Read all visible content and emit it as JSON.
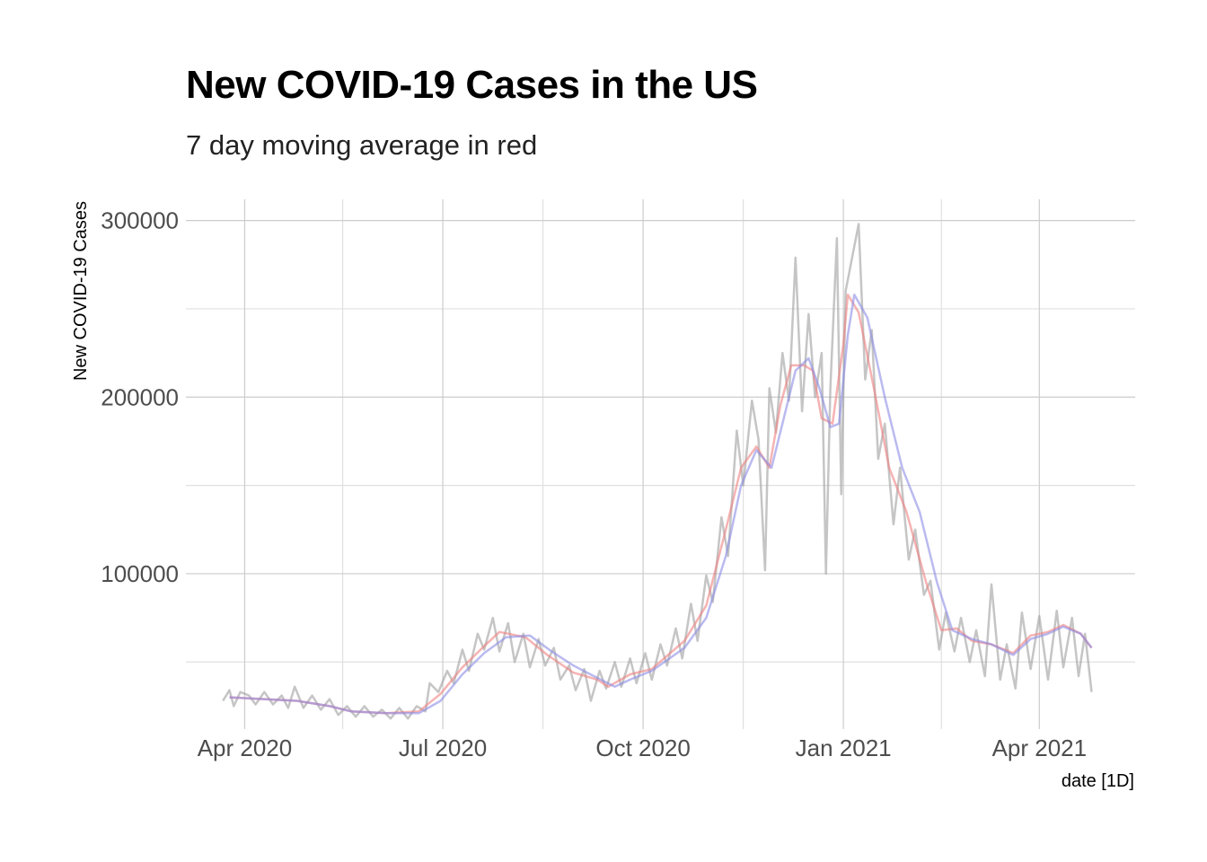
{
  "chart_data": {
    "type": "line",
    "title": "New COVID-19 Cases in the US",
    "subtitle": "7 day moving average in red",
    "xlabel": "date [1D]",
    "ylabel": "New COVID-19 Cases",
    "x_ticks": [
      {
        "date": "2020-04-01",
        "label": "Apr 2020"
      },
      {
        "date": "2020-07-01",
        "label": "Jul 2020"
      },
      {
        "date": "2020-10-01",
        "label": "Oct 2020"
      },
      {
        "date": "2021-01-01",
        "label": "Jan 2021"
      },
      {
        "date": "2021-04-01",
        "label": "Apr 2021"
      }
    ],
    "x_minor_ticks": [
      "2020-05-16",
      "2020-08-16",
      "2020-11-16",
      "2021-02-15"
    ],
    "y_ticks": [
      100000,
      200000,
      300000
    ],
    "y_minor_ticks": [
      50000,
      150000,
      250000
    ],
    "xlim": [
      "2020-03-05",
      "2021-05-15"
    ],
    "ylim": [
      12000,
      312000
    ],
    "grid": true,
    "colors": {
      "daily": "#9e9e9e",
      "ma7": "#f08080",
      "ma14": "#8c8ce6",
      "grid": "#cccccc",
      "grid_minor": "#e0e0e0"
    },
    "daily_anchors": [
      [
        "2020-03-22",
        28000
      ],
      [
        "2020-03-25",
        34000
      ],
      [
        "2020-03-27",
        25000
      ],
      [
        "2020-03-30",
        33000
      ],
      [
        "2020-04-03",
        31000
      ],
      [
        "2020-04-06",
        26000
      ],
      [
        "2020-04-10",
        33000
      ],
      [
        "2020-04-14",
        26000
      ],
      [
        "2020-04-18",
        31000
      ],
      [
        "2020-04-21",
        24000
      ],
      [
        "2020-04-24",
        36000
      ],
      [
        "2020-04-28",
        24000
      ],
      [
        "2020-05-02",
        31000
      ],
      [
        "2020-05-06",
        23000
      ],
      [
        "2020-05-10",
        29000
      ],
      [
        "2020-05-14",
        20000
      ],
      [
        "2020-05-18",
        25000
      ],
      [
        "2020-05-22",
        19000
      ],
      [
        "2020-05-26",
        25000
      ],
      [
        "2020-05-30",
        19000
      ],
      [
        "2020-06-03",
        23000
      ],
      [
        "2020-06-07",
        18000
      ],
      [
        "2020-06-11",
        24000
      ],
      [
        "2020-06-15",
        18000
      ],
      [
        "2020-06-19",
        25000
      ],
      [
        "2020-06-23",
        22000
      ],
      [
        "2020-06-25",
        38000
      ],
      [
        "2020-06-29",
        33000
      ],
      [
        "2020-07-03",
        45000
      ],
      [
        "2020-07-06",
        38000
      ],
      [
        "2020-07-10",
        57000
      ],
      [
        "2020-07-13",
        45000
      ],
      [
        "2020-07-17",
        66000
      ],
      [
        "2020-07-20",
        57000
      ],
      [
        "2020-07-24",
        75000
      ],
      [
        "2020-07-27",
        56000
      ],
      [
        "2020-07-31",
        72000
      ],
      [
        "2020-08-03",
        50000
      ],
      [
        "2020-08-07",
        66000
      ],
      [
        "2020-08-10",
        47000
      ],
      [
        "2020-08-14",
        63000
      ],
      [
        "2020-08-17",
        48000
      ],
      [
        "2020-08-21",
        58000
      ],
      [
        "2020-08-24",
        40000
      ],
      [
        "2020-08-28",
        48000
      ],
      [
        "2020-08-31",
        34000
      ],
      [
        "2020-09-04",
        46000
      ],
      [
        "2020-09-07",
        28000
      ],
      [
        "2020-09-11",
        45000
      ],
      [
        "2020-09-14",
        35000
      ],
      [
        "2020-09-18",
        50000
      ],
      [
        "2020-09-21",
        36000
      ],
      [
        "2020-09-25",
        52000
      ],
      [
        "2020-09-28",
        38000
      ],
      [
        "2020-10-02",
        55000
      ],
      [
        "2020-10-05",
        40000
      ],
      [
        "2020-10-09",
        60000
      ],
      [
        "2020-10-12",
        48000
      ],
      [
        "2020-10-16",
        69000
      ],
      [
        "2020-10-19",
        52000
      ],
      [
        "2020-10-23",
        83000
      ],
      [
        "2020-10-26",
        62000
      ],
      [
        "2020-10-30",
        99000
      ],
      [
        "2020-11-02",
        84000
      ],
      [
        "2020-11-06",
        132000
      ],
      [
        "2020-11-09",
        110000
      ],
      [
        "2020-11-13",
        181000
      ],
      [
        "2020-11-16",
        150000
      ],
      [
        "2020-11-20",
        198000
      ],
      [
        "2020-11-23",
        176000
      ],
      [
        "2020-11-26",
        102000
      ],
      [
        "2020-11-28",
        205000
      ],
      [
        "2020-12-01",
        180000
      ],
      [
        "2020-12-04",
        225000
      ],
      [
        "2020-12-07",
        198000
      ],
      [
        "2020-12-10",
        279000
      ],
      [
        "2020-12-13",
        192000
      ],
      [
        "2020-12-16",
        247000
      ],
      [
        "2020-12-19",
        200000
      ],
      [
        "2020-12-22",
        225000
      ],
      [
        "2020-12-24",
        100000
      ],
      [
        "2020-12-26",
        205000
      ],
      [
        "2020-12-29",
        290000
      ],
      [
        "2020-12-31",
        145000
      ],
      [
        "2021-01-02",
        260000
      ],
      [
        "2021-01-08",
        298000
      ],
      [
        "2021-01-11",
        210000
      ],
      [
        "2021-01-14",
        238000
      ],
      [
        "2021-01-17",
        165000
      ],
      [
        "2021-01-20",
        185000
      ],
      [
        "2021-01-24",
        128000
      ],
      [
        "2021-01-27",
        160000
      ],
      [
        "2021-01-31",
        108000
      ],
      [
        "2021-02-03",
        125000
      ],
      [
        "2021-02-07",
        88000
      ],
      [
        "2021-02-10",
        96000
      ],
      [
        "2021-02-14",
        57000
      ],
      [
        "2021-02-17",
        78000
      ],
      [
        "2021-02-21",
        56000
      ],
      [
        "2021-02-24",
        75000
      ],
      [
        "2021-02-28",
        50000
      ],
      [
        "2021-03-03",
        68000
      ],
      [
        "2021-03-07",
        42000
      ],
      [
        "2021-03-10",
        94000
      ],
      [
        "2021-03-14",
        40000
      ],
      [
        "2021-03-17",
        60000
      ],
      [
        "2021-03-21",
        35000
      ],
      [
        "2021-03-24",
        78000
      ],
      [
        "2021-03-28",
        46000
      ],
      [
        "2021-04-01",
        76000
      ],
      [
        "2021-04-05",
        40000
      ],
      [
        "2021-04-09",
        79000
      ],
      [
        "2021-04-12",
        47000
      ],
      [
        "2021-04-16",
        75000
      ],
      [
        "2021-04-19",
        42000
      ],
      [
        "2021-04-22",
        66000
      ],
      [
        "2021-04-25",
        33000
      ]
    ],
    "series": [
      {
        "values": [
          [
            "2020-03-25",
            30000
          ],
          [
            "2020-04-10",
            29000
          ],
          [
            "2020-04-25",
            28000
          ],
          [
            "2020-05-10",
            25000
          ],
          [
            "2020-05-20",
            22000
          ],
          [
            "2020-06-05",
            21000
          ],
          [
            "2020-06-20",
            22000
          ],
          [
            "2020-06-30",
            32000
          ],
          [
            "2020-07-10",
            47000
          ],
          [
            "2020-07-20",
            59000
          ],
          [
            "2020-07-27",
            67000
          ],
          [
            "2020-08-08",
            64000
          ],
          [
            "2020-08-18",
            54000
          ],
          [
            "2020-08-30",
            44000
          ],
          [
            "2020-09-10",
            40000
          ],
          [
            "2020-09-15",
            36000
          ],
          [
            "2020-09-25",
            43000
          ],
          [
            "2020-10-05",
            46000
          ],
          [
            "2020-10-20",
            62000
          ],
          [
            "2020-10-30",
            82000
          ],
          [
            "2020-11-08",
            125000
          ],
          [
            "2020-11-15",
            160000
          ],
          [
            "2020-11-22",
            172000
          ],
          [
            "2020-11-28",
            160000
          ],
          [
            "2020-12-03",
            195000
          ],
          [
            "2020-12-08",
            218000
          ],
          [
            "2020-12-14",
            218000
          ],
          [
            "2020-12-18",
            215000
          ],
          [
            "2020-12-22",
            188000
          ],
          [
            "2020-12-27",
            185000
          ],
          [
            "2021-01-01",
            230000
          ],
          [
            "2021-01-03",
            258000
          ],
          [
            "2021-01-08",
            248000
          ],
          [
            "2021-01-15",
            205000
          ],
          [
            "2021-01-22",
            160000
          ],
          [
            "2021-01-30",
            135000
          ],
          [
            "2021-02-08",
            95000
          ],
          [
            "2021-02-15",
            68000
          ],
          [
            "2021-02-22",
            69000
          ],
          [
            "2021-03-01",
            62000
          ],
          [
            "2021-03-10",
            60000
          ],
          [
            "2021-03-20",
            55000
          ],
          [
            "2021-03-28",
            65000
          ],
          [
            "2021-04-05",
            67000
          ],
          [
            "2021-04-12",
            71000
          ],
          [
            "2021-04-20",
            66000
          ],
          [
            "2021-04-25",
            58000
          ]
        ]
      },
      {
        "values": [
          [
            "2020-03-25",
            30000
          ],
          [
            "2020-04-10",
            29000
          ],
          [
            "2020-04-25",
            28000
          ],
          [
            "2020-05-10",
            25000
          ],
          [
            "2020-05-20",
            22000
          ],
          [
            "2020-06-05",
            21000
          ],
          [
            "2020-06-20",
            21000
          ],
          [
            "2020-06-30",
            28000
          ],
          [
            "2020-07-10",
            43000
          ],
          [
            "2020-07-20",
            55000
          ],
          [
            "2020-07-30",
            64000
          ],
          [
            "2020-08-10",
            65000
          ],
          [
            "2020-08-20",
            56000
          ],
          [
            "2020-08-30",
            48000
          ],
          [
            "2020-09-10",
            41000
          ],
          [
            "2020-09-18",
            36000
          ],
          [
            "2020-09-25",
            40000
          ],
          [
            "2020-10-05",
            45000
          ],
          [
            "2020-10-20",
            58000
          ],
          [
            "2020-10-30",
            75000
          ],
          [
            "2020-11-08",
            110000
          ],
          [
            "2020-11-15",
            150000
          ],
          [
            "2020-11-22",
            170000
          ],
          [
            "2020-11-29",
            160000
          ],
          [
            "2020-12-05",
            190000
          ],
          [
            "2020-12-10",
            215000
          ],
          [
            "2020-12-16",
            222000
          ],
          [
            "2020-12-21",
            205000
          ],
          [
            "2020-12-26",
            183000
          ],
          [
            "2020-12-30",
            185000
          ],
          [
            "2021-01-03",
            235000
          ],
          [
            "2021-01-06",
            258000
          ],
          [
            "2021-01-12",
            245000
          ],
          [
            "2021-01-20",
            200000
          ],
          [
            "2021-01-28",
            160000
          ],
          [
            "2021-02-05",
            135000
          ],
          [
            "2021-02-13",
            95000
          ],
          [
            "2021-02-20",
            68000
          ],
          [
            "2021-03-01",
            63000
          ],
          [
            "2021-03-10",
            60000
          ],
          [
            "2021-03-20",
            54000
          ],
          [
            "2021-03-28",
            63000
          ],
          [
            "2021-04-05",
            66000
          ],
          [
            "2021-04-12",
            70000
          ],
          [
            "2021-04-20",
            66000
          ],
          [
            "2021-04-25",
            58000
          ]
        ]
      }
    ]
  }
}
